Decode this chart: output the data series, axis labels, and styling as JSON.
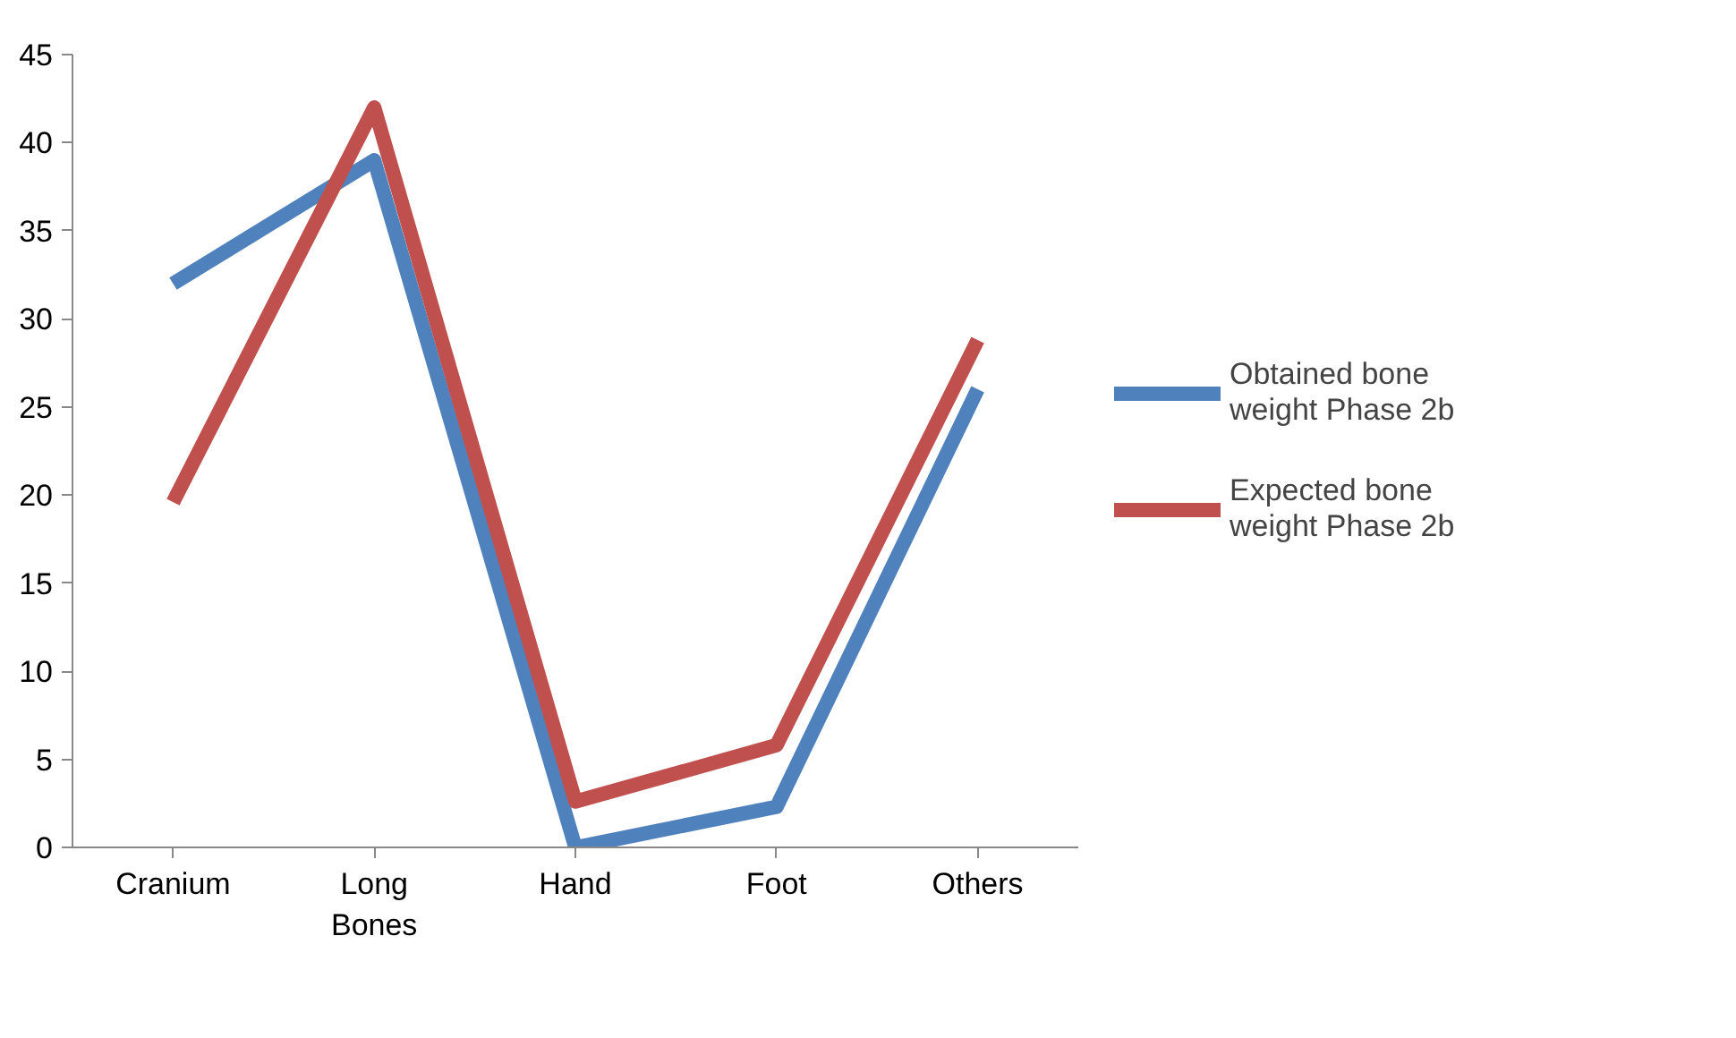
{
  "chart_data": {
    "type": "line",
    "categories": [
      "Cranium",
      "Long Bones",
      "Hand",
      "Foot",
      "Others"
    ],
    "series": [
      {
        "name": "Obtained bone weight Phase 2b",
        "color": "#4f81bd",
        "values": [
          32,
          39,
          0,
          2.3,
          26
        ]
      },
      {
        "name": "Expected bone weight Phase 2b",
        "color": "#c0504d",
        "values": [
          19.6,
          42,
          2.6,
          5.8,
          28.8
        ]
      }
    ],
    "ylim": [
      0,
      45
    ],
    "yticks": [
      0,
      5,
      10,
      15,
      20,
      25,
      30,
      35,
      40,
      45
    ],
    "grid": false,
    "legend": "right",
    "marker": "none",
    "line_style": "solid"
  }
}
